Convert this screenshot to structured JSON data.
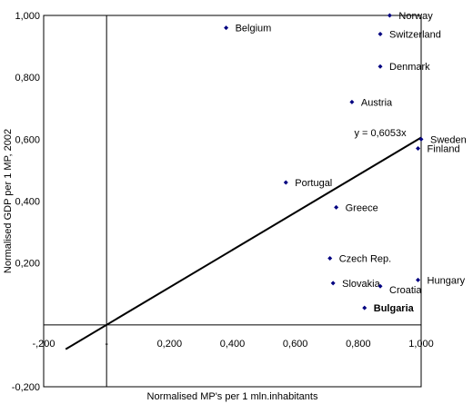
{
  "chart_data": {
    "type": "scatter",
    "xlabel": "Normalised MP's per 1 mln.inhabitants",
    "ylabel": "Normalised GDP per 1 MP, 2002",
    "xlim": [
      -0.2,
      1.0
    ],
    "ylim": [
      -0.2,
      1.0
    ],
    "x_ticks": [
      "-,200",
      "-",
      "0,200",
      "0,400",
      "0,600",
      "0,800",
      "1,000"
    ],
    "y_ticks": [
      "-0,200",
      "0,200",
      "0,400",
      "0,600",
      "0,800",
      "1,000"
    ],
    "points": [
      {
        "label": "Norway",
        "x": 0.9,
        "y": 1.0
      },
      {
        "label": "Belgium",
        "x": 0.38,
        "y": 0.96
      },
      {
        "label": "Switzerland",
        "x": 0.87,
        "y": 0.94
      },
      {
        "label": "Denmark",
        "x": 0.87,
        "y": 0.835
      },
      {
        "label": "Austria",
        "x": 0.78,
        "y": 0.72
      },
      {
        "label": "Sweden",
        "x": 1.0,
        "y": 0.6
      },
      {
        "label": "Finland",
        "x": 0.99,
        "y": 0.57
      },
      {
        "label": "Portugal",
        "x": 0.57,
        "y": 0.46
      },
      {
        "label": "Greece",
        "x": 0.73,
        "y": 0.38
      },
      {
        "label": "Czech Rep.",
        "x": 0.71,
        "y": 0.215
      },
      {
        "label": "Slovakia",
        "x": 0.72,
        "y": 0.135
      },
      {
        "label": "Croatia",
        "x": 0.87,
        "y": 0.125
      },
      {
        "label": "Hungary",
        "x": 0.99,
        "y": 0.145
      },
      {
        "label": "Bulgaria",
        "x": 0.82,
        "y": 0.055
      }
    ],
    "trendline": {
      "label": "y = 0,6053x",
      "slope": 0.6053,
      "x_range": [
        -0.13,
        1.0
      ]
    },
    "grid": false,
    "legend": "none"
  }
}
